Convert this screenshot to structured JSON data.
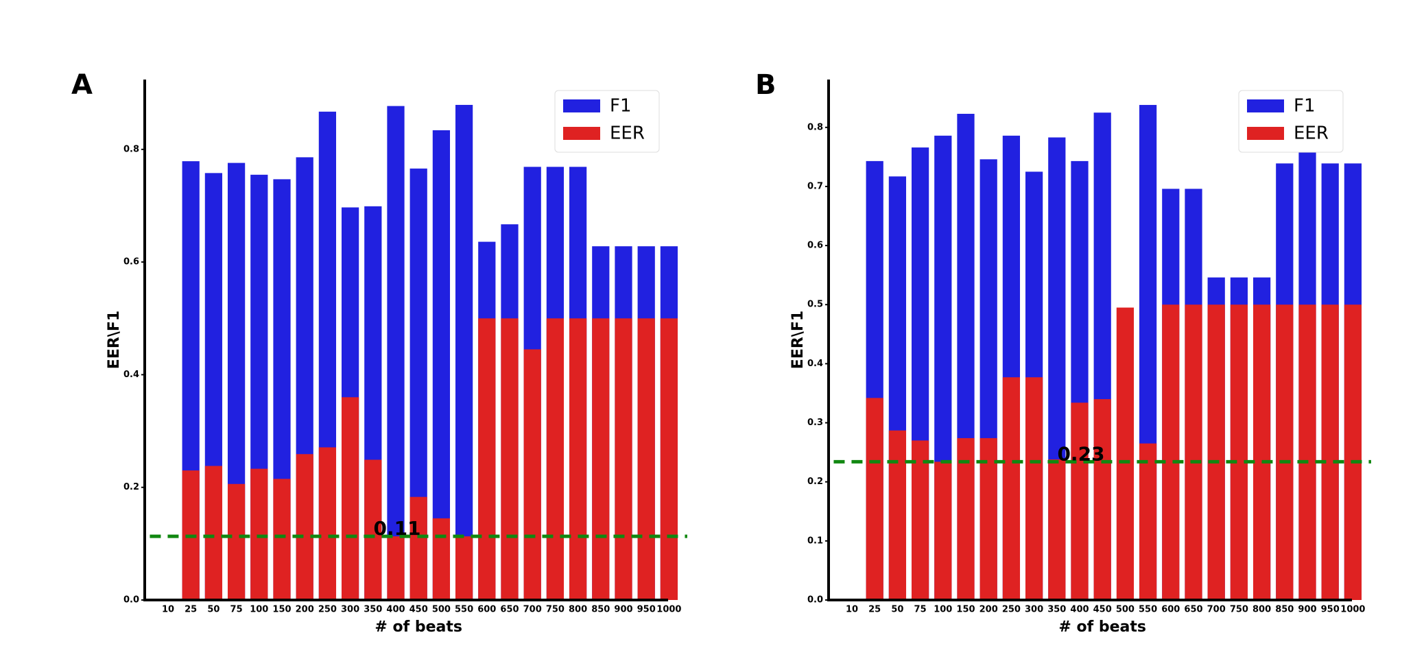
{
  "chart_data": [
    {
      "type": "bar",
      "panel_label": "A",
      "xlabel": "# of beats",
      "ylabel": "EER\\F1",
      "legend": "upper right",
      "categories": [
        "10",
        "25",
        "50",
        "75",
        "100",
        "150",
        "200",
        "250",
        "300",
        "350",
        "400",
        "450",
        "500",
        "550",
        "600",
        "650",
        "700",
        "750",
        "800",
        "850",
        "900",
        "950",
        "1000"
      ],
      "series": [
        {
          "name": "F1",
          "color": "#2121e0",
          "values": [
            null,
            0.779,
            0.758,
            0.776,
            0.755,
            0.747,
            0.786,
            0.867,
            0.697,
            0.699,
            0.877,
            0.766,
            0.834,
            0.879,
            0.636,
            0.667,
            0.769,
            0.769,
            0.769,
            0.628,
            0.628,
            0.628,
            0.628
          ]
        },
        {
          "name": "EER",
          "color": "#df2222",
          "values": [
            null,
            0.23,
            0.238,
            0.206,
            0.233,
            0.215,
            0.259,
            0.271,
            0.36,
            0.249,
            0.113,
            0.183,
            0.145,
            0.113,
            0.5,
            0.5,
            0.445,
            0.5,
            0.5,
            0.5,
            0.5,
            0.5,
            0.5
          ]
        }
      ],
      "annotation": {
        "value": 0.113,
        "label": "0.11"
      },
      "annotation_color": "#118811",
      "ylim": [
        0,
        0.924
      ],
      "yticks": [
        {
          "value": 0,
          "label": "0.0"
        },
        0.2,
        0.4,
        0.6,
        0.8
      ]
    },
    {
      "type": "bar",
      "panel_label": "B",
      "xlabel": "# of beats",
      "ylabel": "EER\\F1",
      "legend": "upper right",
      "categories": [
        "10",
        "25",
        "50",
        "75",
        "100",
        "150",
        "200",
        "250",
        "300",
        "350",
        "400",
        "450",
        "500",
        "550",
        "600",
        "650",
        "700",
        "750",
        "800",
        "850",
        "900",
        "950",
        "1000"
      ],
      "series": [
        {
          "name": "F1",
          "color": "#2121e0",
          "values": [
            null,
            0.743,
            0.717,
            0.766,
            0.786,
            0.823,
            0.746,
            0.786,
            0.725,
            0.783,
            0.743,
            0.825,
            null,
            0.838,
            0.696,
            0.696,
            0.546,
            0.546,
            0.546,
            0.739,
            0.771,
            0.739,
            0.739
          ]
        },
        {
          "name": "EER",
          "color": "#df2222",
          "values": [
            null,
            0.342,
            0.287,
            0.27,
            0.234,
            0.274,
            0.274,
            0.377,
            0.377,
            0.238,
            0.334,
            0.34,
            0.495,
            0.265,
            0.5,
            0.5,
            0.5,
            0.5,
            0.5,
            0.5,
            0.5,
            0.5,
            0.5
          ]
        }
      ],
      "annotation": {
        "value": 0.234,
        "label": "0.23"
      },
      "annotation_color": "#118811",
      "ylim": [
        0,
        0.881
      ],
      "yticks": [
        {
          "value": 0,
          "label": "0.0"
        },
        0.1,
        0.2,
        0.3,
        0.4,
        0.5,
        0.6,
        0.7,
        0.8
      ]
    }
  ]
}
